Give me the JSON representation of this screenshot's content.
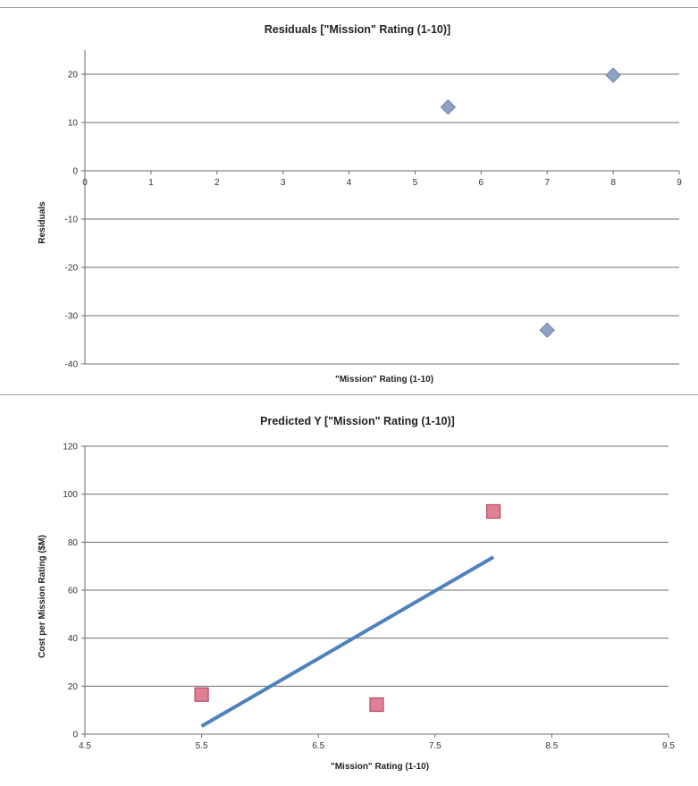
{
  "chart_data": [
    {
      "type": "scatter",
      "title": "Residuals [\"Mission\" Rating (1-10)]",
      "xlabel": "\"Mission\" Rating (1-10)",
      "ylabel": "Residuals",
      "xlim": [
        0,
        9
      ],
      "ylim": [
        -40,
        25
      ],
      "xticks": [
        "0",
        "1",
        "2",
        "3",
        "4",
        "5",
        "6",
        "7",
        "8",
        "9"
      ],
      "yticks": [
        "20",
        "10",
        "0",
        "-10",
        "-20",
        "-30",
        "-40"
      ],
      "grid": "horizontal",
      "legend": "none",
      "marker": "diamond",
      "color": "#8ea2c6",
      "series": [
        {
          "points": [
            {
              "x": 5.5,
              "y": 13.2
            },
            {
              "x": 7,
              "y": -33
            },
            {
              "x": 8,
              "y": 19.8
            }
          ]
        }
      ]
    },
    {
      "type": "scatter",
      "title": "Predicted Y [\"Mission\" Rating (1-10)]",
      "xlabel": "\"Mission\" Rating (1-10)",
      "ylabel": "Cost per Mission Rating ($M)",
      "xlim": [
        4.5,
        9.5
      ],
      "ylim": [
        0,
        120
      ],
      "xticks": [
        "4.5",
        "5.5",
        "6.5",
        "7.5",
        "8.5",
        "9.5"
      ],
      "yticks": [
        "120",
        "100",
        "80",
        "60",
        "40",
        "20",
        "0"
      ],
      "grid": "horizontal",
      "legend": "none",
      "series": [
        {
          "marker": "square",
          "color": "#e08094",
          "points": [
            {
              "x": 5.5,
              "y": 16.5
            },
            {
              "x": 7,
              "y": 12.3
            },
            {
              "x": 8,
              "y": 92.8
            }
          ]
        },
        {
          "marker": "line",
          "color": "#4f81bd",
          "points": [
            {
              "x": 5.5,
              "y": 3.3
            },
            {
              "x": 8,
              "y": 73.8
            }
          ]
        }
      ]
    }
  ]
}
